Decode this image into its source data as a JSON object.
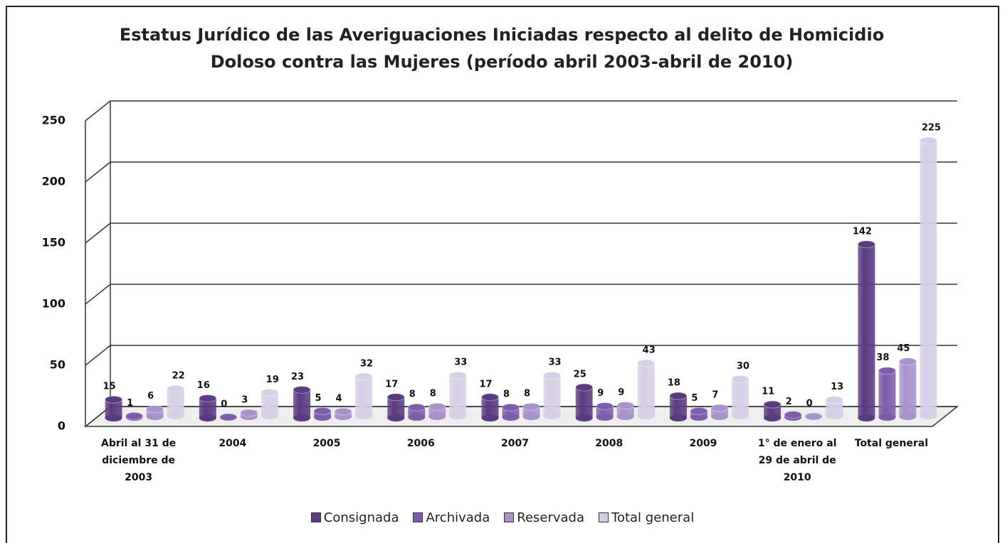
{
  "chart_data": {
    "type": "bar",
    "title": "Estatus Jurídico de las Averiguaciones Iniciadas respecto al delito de Homicidio Doloso contra las Mujeres (período abril 2003-abril de 2010)",
    "categories": [
      "Abril al 31 de diciembre de 2003",
      "2004",
      "2005",
      "2006",
      "2007",
      "2008",
      "2009",
      "1° de enero al 29 de abril de 2010",
      "Total general"
    ],
    "series": [
      {
        "name": "Consignada",
        "color": "#5a3a80",
        "values": [
          15,
          16,
          23,
          17,
          17,
          25,
          18,
          11,
          142
        ]
      },
      {
        "name": "Archivada",
        "color": "#7d5cab",
        "values": [
          1,
          0,
          5,
          8,
          8,
          9,
          5,
          2,
          38
        ]
      },
      {
        "name": "Reservada",
        "color": "#a892cc",
        "values": [
          6,
          3,
          4,
          8,
          8,
          9,
          7,
          0,
          45
        ]
      },
      {
        "name": "Total general",
        "color": "#d6cfe6",
        "values": [
          22,
          19,
          32,
          33,
          33,
          43,
          30,
          13,
          225
        ]
      }
    ],
    "ylim": [
      0,
      250
    ],
    "yticks": [
      0,
      50,
      100,
      150,
      200,
      250
    ],
    "grid": true,
    "legend": "bottom"
  }
}
